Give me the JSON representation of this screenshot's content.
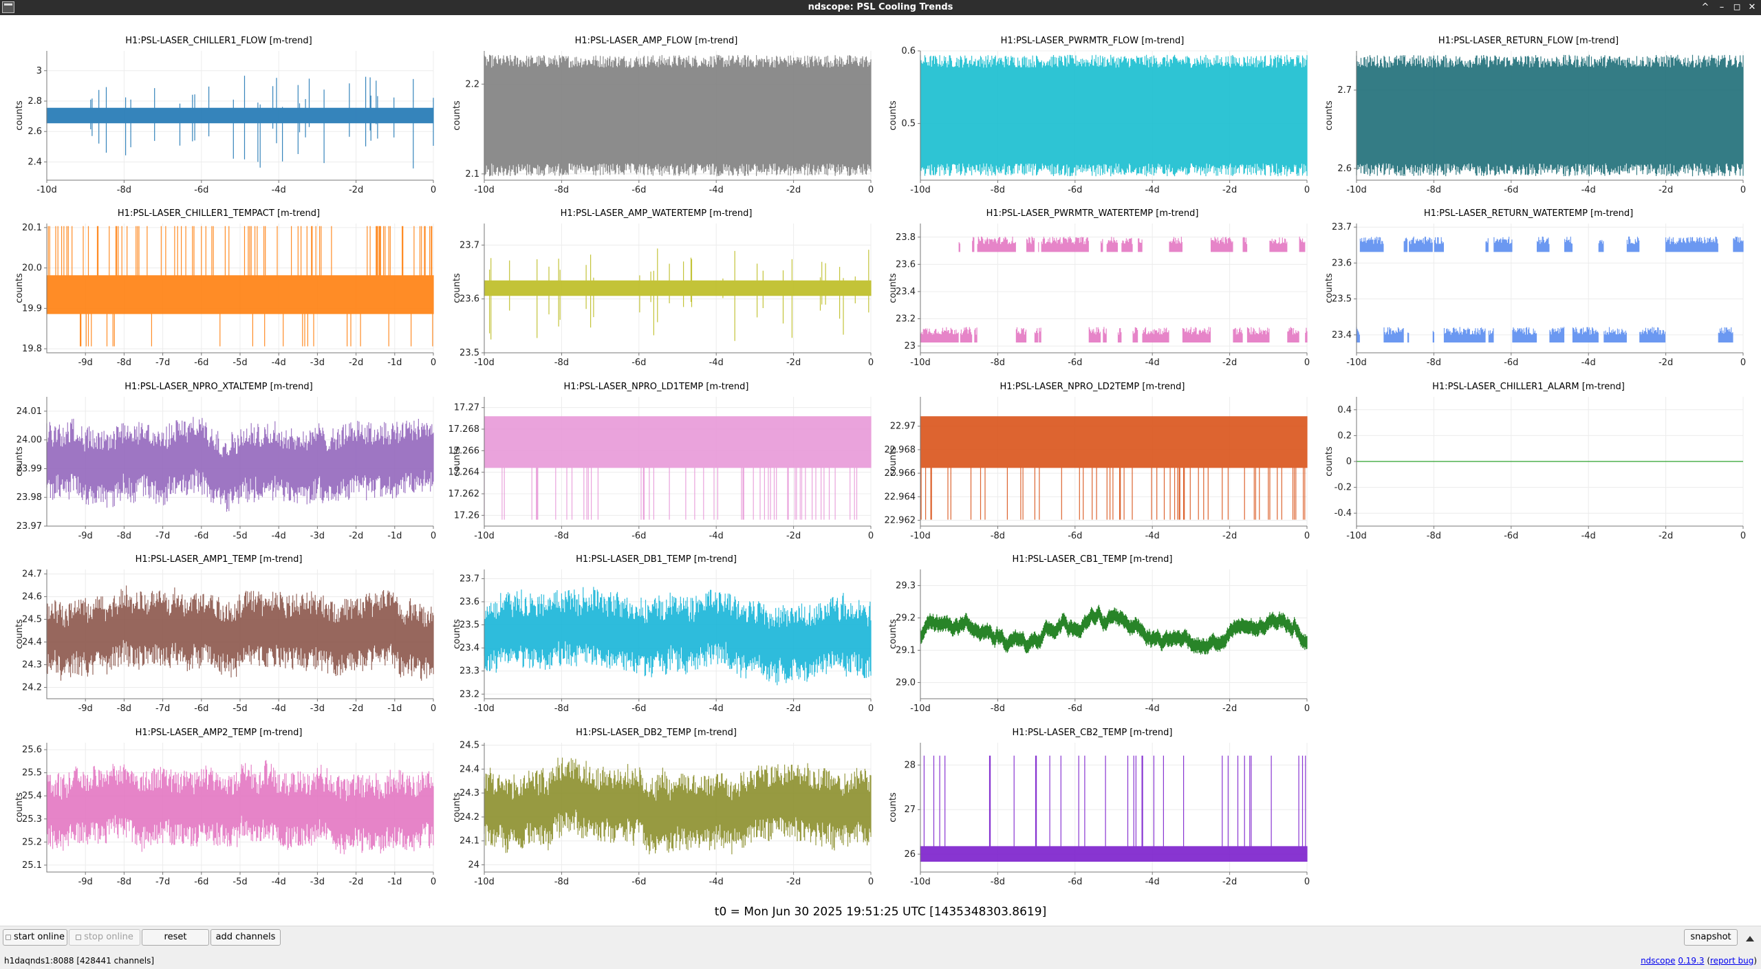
{
  "window": {
    "title": "ndscope: PSL Cooling Trends",
    "buttons": {
      "minimize": "–",
      "restore": "▫",
      "maximize": "◻",
      "close": "✕",
      "up": "^"
    }
  },
  "t0_label": "t0 = Mon Jun 30 2025 19:51:25 UTC [1435348303.8619]",
  "toolbar": {
    "start_online": "start online",
    "stop_online": "stop online",
    "reset": "reset",
    "add_channels": "add channels",
    "snapshot": "snapshot"
  },
  "status": {
    "server": "h1daqnds1:8088  [428441 channels]",
    "app_link": "ndscope",
    "version_link": "0.19.3",
    "report_bug": "report bug"
  },
  "plots": [
    {
      "title": "H1:PSL-LASER_CHILLER1_FLOW [m-trend]",
      "ylabel": "counts",
      "color": "#1f77b4",
      "ylim": [
        2.28,
        3.13
      ],
      "yticks": [
        2.4,
        2.6,
        2.8,
        3.0
      ],
      "ytick_labels": [
        "2.4",
        "2.6",
        "2.8",
        "3"
      ],
      "xlim": [
        -10,
        0
      ],
      "xticks": [
        -10,
        -8,
        -6,
        -4,
        -2,
        0
      ],
      "xtick_labels": [
        "-10d",
        "-8d",
        "-6d",
        "-4d",
        "-2d",
        "0"
      ],
      "style": "band"
    },
    {
      "title": "H1:PSL-LASER_AMP_FLOW [m-trend]",
      "ylabel": "counts",
      "color": "#7f7f7f",
      "ylim": [
        2.093,
        2.237
      ],
      "yticks": [
        2.1,
        2.2
      ],
      "ytick_labels": [
        "2.1",
        "2.2"
      ],
      "xlim": [
        -10,
        0
      ],
      "xticks": [
        -10,
        -8,
        -6,
        -4,
        -2,
        0
      ],
      "xtick_labels": [
        "-10d",
        "-8d",
        "-6d",
        "-4d",
        "-2d",
        "0"
      ],
      "style": "multiband"
    },
    {
      "title": "H1:PSL-LASER_PWRMTR_FLOW [m-trend]",
      "ylabel": "counts",
      "color": "#17becf",
      "ylim": [
        0.422,
        0.6
      ],
      "yticks": [
        0.5,
        0.6
      ],
      "ytick_labels": [
        "0.5",
        "0.6"
      ],
      "xlim": [
        -10,
        0
      ],
      "xticks": [
        -10,
        -8,
        -6,
        -4,
        -2,
        0
      ],
      "xtick_labels": [
        "-10d",
        "-8d",
        "-6d",
        "-4d",
        "-2d",
        "0"
      ],
      "style": "multiband"
    },
    {
      "title": "H1:PSL-LASER_RETURN_FLOW [m-trend]",
      "ylabel": "counts",
      "color": "#1e6e78",
      "ylim": [
        2.585,
        2.75
      ],
      "yticks": [
        2.6,
        2.7
      ],
      "ytick_labels": [
        "2.6",
        "2.7"
      ],
      "xlim": [
        -10,
        0
      ],
      "xticks": [
        -10,
        -8,
        -6,
        -4,
        -2,
        0
      ],
      "xtick_labels": [
        "-10d",
        "-8d",
        "-6d",
        "-4d",
        "-2d",
        "0"
      ],
      "style": "multiband"
    },
    {
      "title": "H1:PSL-LASER_CHILLER1_TEMPACT [m-trend]",
      "ylabel": "counts",
      "color": "#ff7f0e",
      "ylim": [
        19.79,
        20.11
      ],
      "yticks": [
        19.8,
        19.9,
        20.0,
        20.1
      ],
      "ytick_labels": [
        "19.8",
        "19.9",
        "20.0",
        "20.1"
      ],
      "xlim": [
        -10,
        0
      ],
      "xticks": [
        -9,
        -8,
        -7,
        -6,
        -5,
        -4,
        -3,
        -2,
        -1,
        0
      ],
      "xtick_labels": [
        "-9d",
        "-8d",
        "-7d",
        "-6d",
        "-5d",
        "-4d",
        "-3d",
        "-2d",
        "-1d",
        "0"
      ],
      "style": "solidband"
    },
    {
      "title": "H1:PSL-LASER_AMP_WATERTEMP [m-trend]",
      "ylabel": "counts",
      "color": "#bcbd22",
      "ylim": [
        23.5,
        23.74
      ],
      "yticks": [
        23.5,
        23.6,
        23.7
      ],
      "ytick_labels": [
        "23.5",
        "23.6",
        "23.7"
      ],
      "xlim": [
        -10,
        0
      ],
      "xticks": [
        -10,
        -8,
        -6,
        -4,
        -2,
        0
      ],
      "xtick_labels": [
        "-10d",
        "-8d",
        "-6d",
        "-4d",
        "-2d",
        "0"
      ],
      "style": "band"
    },
    {
      "title": "H1:PSL-LASER_PWRMTR_WATERTEMP [m-trend]",
      "ylabel": "counts",
      "color": "#e377c2",
      "ylim": [
        22.95,
        23.9
      ],
      "yticks": [
        23.0,
        23.2,
        23.4,
        23.6,
        23.8
      ],
      "ytick_labels": [
        "23",
        "23.2",
        "23.4",
        "23.6",
        "23.8"
      ],
      "xlim": [
        -10,
        0
      ],
      "xticks": [
        -10,
        -8,
        -6,
        -4,
        -2,
        0
      ],
      "xtick_labels": [
        "-10d",
        "-8d",
        "-6d",
        "-4d",
        "-2d",
        "0"
      ],
      "style": "square"
    },
    {
      "title": "H1:PSL-LASER_RETURN_WATERTEMP [m-trend]",
      "ylabel": "counts",
      "color": "#5b8def",
      "ylim": [
        23.35,
        23.71
      ],
      "yticks": [
        23.4,
        23.5,
        23.6,
        23.7
      ],
      "ytick_labels": [
        "23.4",
        "23.5",
        "23.6",
        "23.7"
      ],
      "xlim": [
        -10,
        0
      ],
      "xticks": [
        -10,
        -8,
        -6,
        -4,
        -2,
        0
      ],
      "xtick_labels": [
        "-10d",
        "-8d",
        "-6d",
        "-4d",
        "-2d",
        "0"
      ],
      "style": "square"
    },
    {
      "title": "H1:PSL-LASER_NPRO_XTALTEMP [m-trend]",
      "ylabel": "counts",
      "color": "#9467bd",
      "ylim": [
        23.97,
        24.015
      ],
      "yticks": [
        23.97,
        23.98,
        23.99,
        24.0,
        24.01
      ],
      "ytick_labels": [
        "23.97",
        "23.98",
        "23.99",
        "24.00",
        "24.01"
      ],
      "xlim": [
        -10,
        0
      ],
      "xticks": [
        -9,
        -8,
        -7,
        -6,
        -5,
        -4,
        -3,
        -2,
        -1,
        0
      ],
      "xtick_labels": [
        "-9d",
        "-8d",
        "-7d",
        "-6d",
        "-5d",
        "-4d",
        "-3d",
        "-2d",
        "-1d",
        "0"
      ],
      "style": "noisy"
    },
    {
      "title": "H1:PSL-LASER_NPRO_LD1TEMP [m-trend]",
      "ylabel": "counts",
      "color": "#e899d8",
      "ylim": [
        17.259,
        17.271
      ],
      "yticks": [
        17.26,
        17.262,
        17.264,
        17.266,
        17.268,
        17.27
      ],
      "ytick_labels": [
        "17.26",
        "17.262",
        "17.264",
        "17.266",
        "17.268",
        "17.27"
      ],
      "xlim": [
        -10,
        0
      ],
      "xticks": [
        -10,
        -8,
        -6,
        -4,
        -2,
        0
      ],
      "xtick_labels": [
        "-10d",
        "-8d",
        "-6d",
        "-4d",
        "-2d",
        "0"
      ],
      "style": "ld"
    },
    {
      "title": "H1:PSL-LASER_NPRO_LD2TEMP [m-trend]",
      "ylabel": "counts",
      "color": "#d95319",
      "ylim": [
        22.9615,
        22.9725
      ],
      "yticks": [
        22.962,
        22.964,
        22.966,
        22.968,
        22.97
      ],
      "ytick_labels": [
        "22.962",
        "22.964",
        "22.966",
        "22.968",
        "22.97"
      ],
      "xlim": [
        -10,
        0
      ],
      "xticks": [
        -10,
        -8,
        -6,
        -4,
        -2,
        0
      ],
      "xtick_labels": [
        "-10d",
        "-8d",
        "-6d",
        "-4d",
        "-2d",
        "0"
      ],
      "style": "ld"
    },
    {
      "title": "H1:PSL-LASER_CHILLER1_ALARM [m-trend]",
      "ylabel": "counts",
      "color": "#2ca02c",
      "ylim": [
        -0.5,
        0.5
      ],
      "yticks": [
        -0.4,
        -0.2,
        0.0,
        0.2,
        0.4
      ],
      "ytick_labels": [
        "-0.4",
        "-0.2",
        "0",
        "0.2",
        "0.4"
      ],
      "xlim": [
        -10,
        0
      ],
      "xticks": [
        -10,
        -8,
        -6,
        -4,
        -2,
        0
      ],
      "xtick_labels": [
        "-10d",
        "-8d",
        "-6d",
        "-4d",
        "-2d",
        "0"
      ],
      "style": "flat"
    },
    {
      "title": "H1:PSL-LASER_AMP1_TEMP [m-trend]",
      "ylabel": "counts",
      "color": "#8c564b",
      "ylim": [
        24.15,
        24.72
      ],
      "yticks": [
        24.2,
        24.3,
        24.4,
        24.5,
        24.6,
        24.7
      ],
      "ytick_labels": [
        "24.2",
        "24.3",
        "24.4",
        "24.5",
        "24.6",
        "24.7"
      ],
      "xlim": [
        -10,
        0
      ],
      "xticks": [
        -9,
        -8,
        -7,
        -6,
        -5,
        -4,
        -3,
        -2,
        -1,
        0
      ],
      "xtick_labels": [
        "-9d",
        "-8d",
        "-7d",
        "-6d",
        "-5d",
        "-4d",
        "-3d",
        "-2d",
        "-1d",
        "0"
      ],
      "style": "noisy"
    },
    {
      "title": "H1:PSL-LASER_DB1_TEMP [m-trend]",
      "ylabel": "counts",
      "color": "#17b5d8",
      "ylim": [
        23.18,
        23.74
      ],
      "yticks": [
        23.2,
        23.3,
        23.4,
        23.5,
        23.6,
        23.7
      ],
      "ytick_labels": [
        "23.2",
        "23.3",
        "23.4",
        "23.5",
        "23.6",
        "23.7"
      ],
      "xlim": [
        -10,
        0
      ],
      "xticks": [
        -10,
        -8,
        -6,
        -4,
        -2,
        0
      ],
      "xtick_labels": [
        "-10d",
        "-8d",
        "-6d",
        "-4d",
        "-2d",
        "0"
      ],
      "style": "noisy"
    },
    {
      "title": "H1:PSL-LASER_CB1_TEMP [m-trend]",
      "ylabel": "counts",
      "color": "#117711",
      "ylim": [
        28.95,
        29.35
      ],
      "yticks": [
        29.0,
        29.1,
        29.2,
        29.3
      ],
      "ytick_labels": [
        "29.0",
        "29.1",
        "29.2",
        "29.3"
      ],
      "xlim": [
        -10,
        0
      ],
      "xticks": [
        -10,
        -8,
        -6,
        -4,
        -2,
        0
      ],
      "xtick_labels": [
        "-10d",
        "-8d",
        "-6d",
        "-4d",
        "-2d",
        "0"
      ],
      "style": "walk"
    },
    {
      "title": "H1:PSL-LASER_AMP2_TEMP [m-trend]",
      "ylabel": "counts",
      "color": "#e377c2",
      "ylim": [
        25.07,
        25.63
      ],
      "yticks": [
        25.1,
        25.2,
        25.3,
        25.4,
        25.5,
        25.6
      ],
      "ytick_labels": [
        "25.1",
        "25.2",
        "25.3",
        "25.4",
        "25.5",
        "25.6"
      ],
      "xlim": [
        -10,
        0
      ],
      "xticks": [
        -9,
        -8,
        -7,
        -6,
        -5,
        -4,
        -3,
        -2,
        -1,
        0
      ],
      "xtick_labels": [
        "-9d",
        "-8d",
        "-7d",
        "-6d",
        "-5d",
        "-4d",
        "-3d",
        "-2d",
        "-1d",
        "0"
      ],
      "style": "noisy"
    },
    {
      "title": "H1:PSL-LASER_DB2_TEMP [m-trend]",
      "ylabel": "counts",
      "color": "#8c8f2c",
      "ylim": [
        23.97,
        24.51
      ],
      "yticks": [
        24.0,
        24.1,
        24.2,
        24.3,
        24.4,
        24.5
      ],
      "ytick_labels": [
        "24",
        "24.1",
        "24.2",
        "24.3",
        "24.4",
        "24.5"
      ],
      "xlim": [
        -10,
        0
      ],
      "xticks": [
        -10,
        -8,
        -6,
        -4,
        -2,
        0
      ],
      "xtick_labels": [
        "-10d",
        "-8d",
        "-6d",
        "-4d",
        "-2d",
        "0"
      ],
      "style": "noisy"
    },
    {
      "title": "H1:PSL-LASER_CB2_TEMP [m-trend]",
      "ylabel": "counts",
      "color": "#7b1fcc",
      "ylim": [
        25.6,
        28.5
      ],
      "yticks": [
        26,
        27,
        28
      ],
      "ytick_labels": [
        "26",
        "27",
        "28"
      ],
      "xlim": [
        -10,
        0
      ],
      "xticks": [
        -10,
        -8,
        -6,
        -4,
        -2,
        0
      ],
      "xtick_labels": [
        "-10d",
        "-8d",
        "-6d",
        "-4d",
        "-2d",
        "0"
      ],
      "style": "spike"
    }
  ]
}
